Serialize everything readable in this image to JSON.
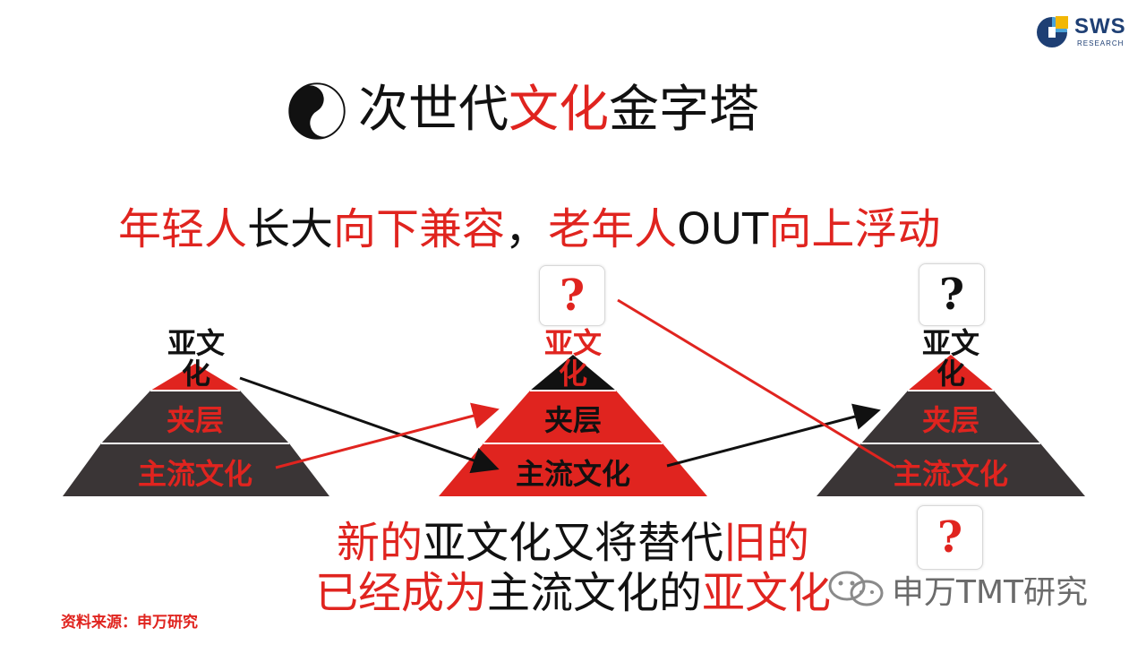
{
  "logo": {
    "text": "SWS",
    "sub": "RESEARCH"
  },
  "title": {
    "part1": "次世代",
    "part2": "文化",
    "part3": "金字塔"
  },
  "subtitle": {
    "p1": "年轻人",
    "p2": "长大",
    "p3": "向下兼容",
    "p4": "，",
    "p5": "老年人",
    "p6": "OUT",
    "p7": "向上浮动"
  },
  "pyramids": [
    {
      "top": "亚文化",
      "middle": "夹层",
      "bottom": "主流文化"
    },
    {
      "top": "亚文化",
      "middle": "夹层",
      "bottom": "主流文化",
      "question": "?"
    },
    {
      "top": "亚文化",
      "middle": "夹层",
      "bottom": "主流文化",
      "question_top": "?",
      "question_bottom": "?"
    }
  ],
  "bottom_text": {
    "line1_p1": "新的",
    "line1_p2": "亚文化又将替代",
    "line1_p3": "旧的",
    "line2_p1": "已经成为",
    "line2_p2": "主流文化的",
    "line2_p3": "亚文化"
  },
  "source": "资料来源：申万研究",
  "watermark": "申万TMT研究",
  "colors": {
    "red": "#e0241f",
    "dark": "#3a3536",
    "black": "#111111",
    "logo_blue": "#1e3f74"
  }
}
